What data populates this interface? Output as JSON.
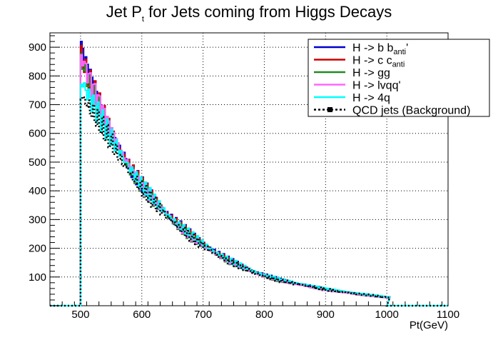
{
  "chart_data": {
    "type": "line",
    "title_main": "Jet P",
    "title_sub": "t",
    "title_rest": " for Jets coming from Higgs Decays",
    "xlabel": "Pt(GeV)",
    "ylabel": "",
    "xlim": [
      450,
      1100
    ],
    "ylim": [
      0,
      950
    ],
    "xticks": [
      500,
      600,
      700,
      800,
      900,
      1000,
      1100
    ],
    "yticks": [
      100,
      200,
      300,
      400,
      500,
      600,
      700,
      800,
      900
    ],
    "grid": true,
    "legend_position": "top-right",
    "x": [
      500,
      510,
      520,
      530,
      540,
      550,
      560,
      570,
      580,
      590,
      600,
      620,
      640,
      660,
      680,
      700,
      720,
      740,
      760,
      780,
      800,
      825,
      850,
      875,
      900,
      925,
      950,
      975,
      1000
    ],
    "series": [
      {
        "name": "H -> b b",
        "name_sub": "anti",
        "name_suffix": "'",
        "color": "#0000cc",
        "style": "solid",
        "values": [
          900,
          820,
          760,
          700,
          650,
          600,
          560,
          520,
          480,
          450,
          420,
          370,
          320,
          280,
          245,
          215,
          185,
          160,
          140,
          120,
          105,
          90,
          78,
          68,
          58,
          50,
          42,
          36,
          30
        ]
      },
      {
        "name": "H -> c c",
        "name_sub": "anti",
        "name_suffix": "",
        "color": "#cc0000",
        "style": "solid",
        "values": [
          880,
          800,
          745,
          690,
          640,
          595,
          555,
          515,
          478,
          445,
          415,
          365,
          318,
          278,
          242,
          212,
          183,
          158,
          138,
          119,
          104,
          89,
          77,
          67,
          57,
          49,
          41,
          35,
          29
        ]
      },
      {
        "name": "H -> gg",
        "name_sub": "",
        "name_suffix": "",
        "color": "#228b22",
        "style": "solid",
        "values": [
          860,
          790,
          735,
          680,
          632,
          588,
          548,
          510,
          474,
          442,
          412,
          362,
          316,
          276,
          240,
          210,
          182,
          157,
          137,
          118,
          103,
          88,
          76,
          66,
          56,
          48,
          40,
          34,
          28
        ]
      },
      {
        "name": "H -> lvqq'",
        "name_sub": "",
        "name_suffix": "",
        "color": "#ff66ff",
        "style": "solid",
        "values": [
          870,
          810,
          755,
          700,
          648,
          600,
          558,
          518,
          480,
          448,
          418,
          366,
          318,
          277,
          241,
          210,
          181,
          156,
          136,
          117,
          102,
          87,
          75,
          65,
          55,
          47,
          40,
          34,
          28
        ]
      },
      {
        "name": "H -> 4q",
        "name_sub": "",
        "name_suffix": "",
        "color": "#00ffff",
        "style": "solid",
        "values": [
          780,
          740,
          700,
          660,
          620,
          580,
          545,
          508,
          474,
          444,
          414,
          364,
          318,
          278,
          243,
          213,
          185,
          160,
          140,
          121,
          106,
          91,
          79,
          69,
          59,
          51,
          43,
          37,
          31
        ]
      },
      {
        "name": "QCD jets (Background)",
        "name_sub": "",
        "name_suffix": "",
        "color": "#000000",
        "style": "dotted",
        "values": [
          730,
          700,
          665,
          630,
          595,
          560,
          525,
          492,
          460,
          430,
          402,
          355,
          310,
          272,
          238,
          208,
          180,
          156,
          136,
          117,
          102,
          88,
          76,
          66,
          56,
          48,
          41,
          35,
          29
        ]
      }
    ]
  }
}
